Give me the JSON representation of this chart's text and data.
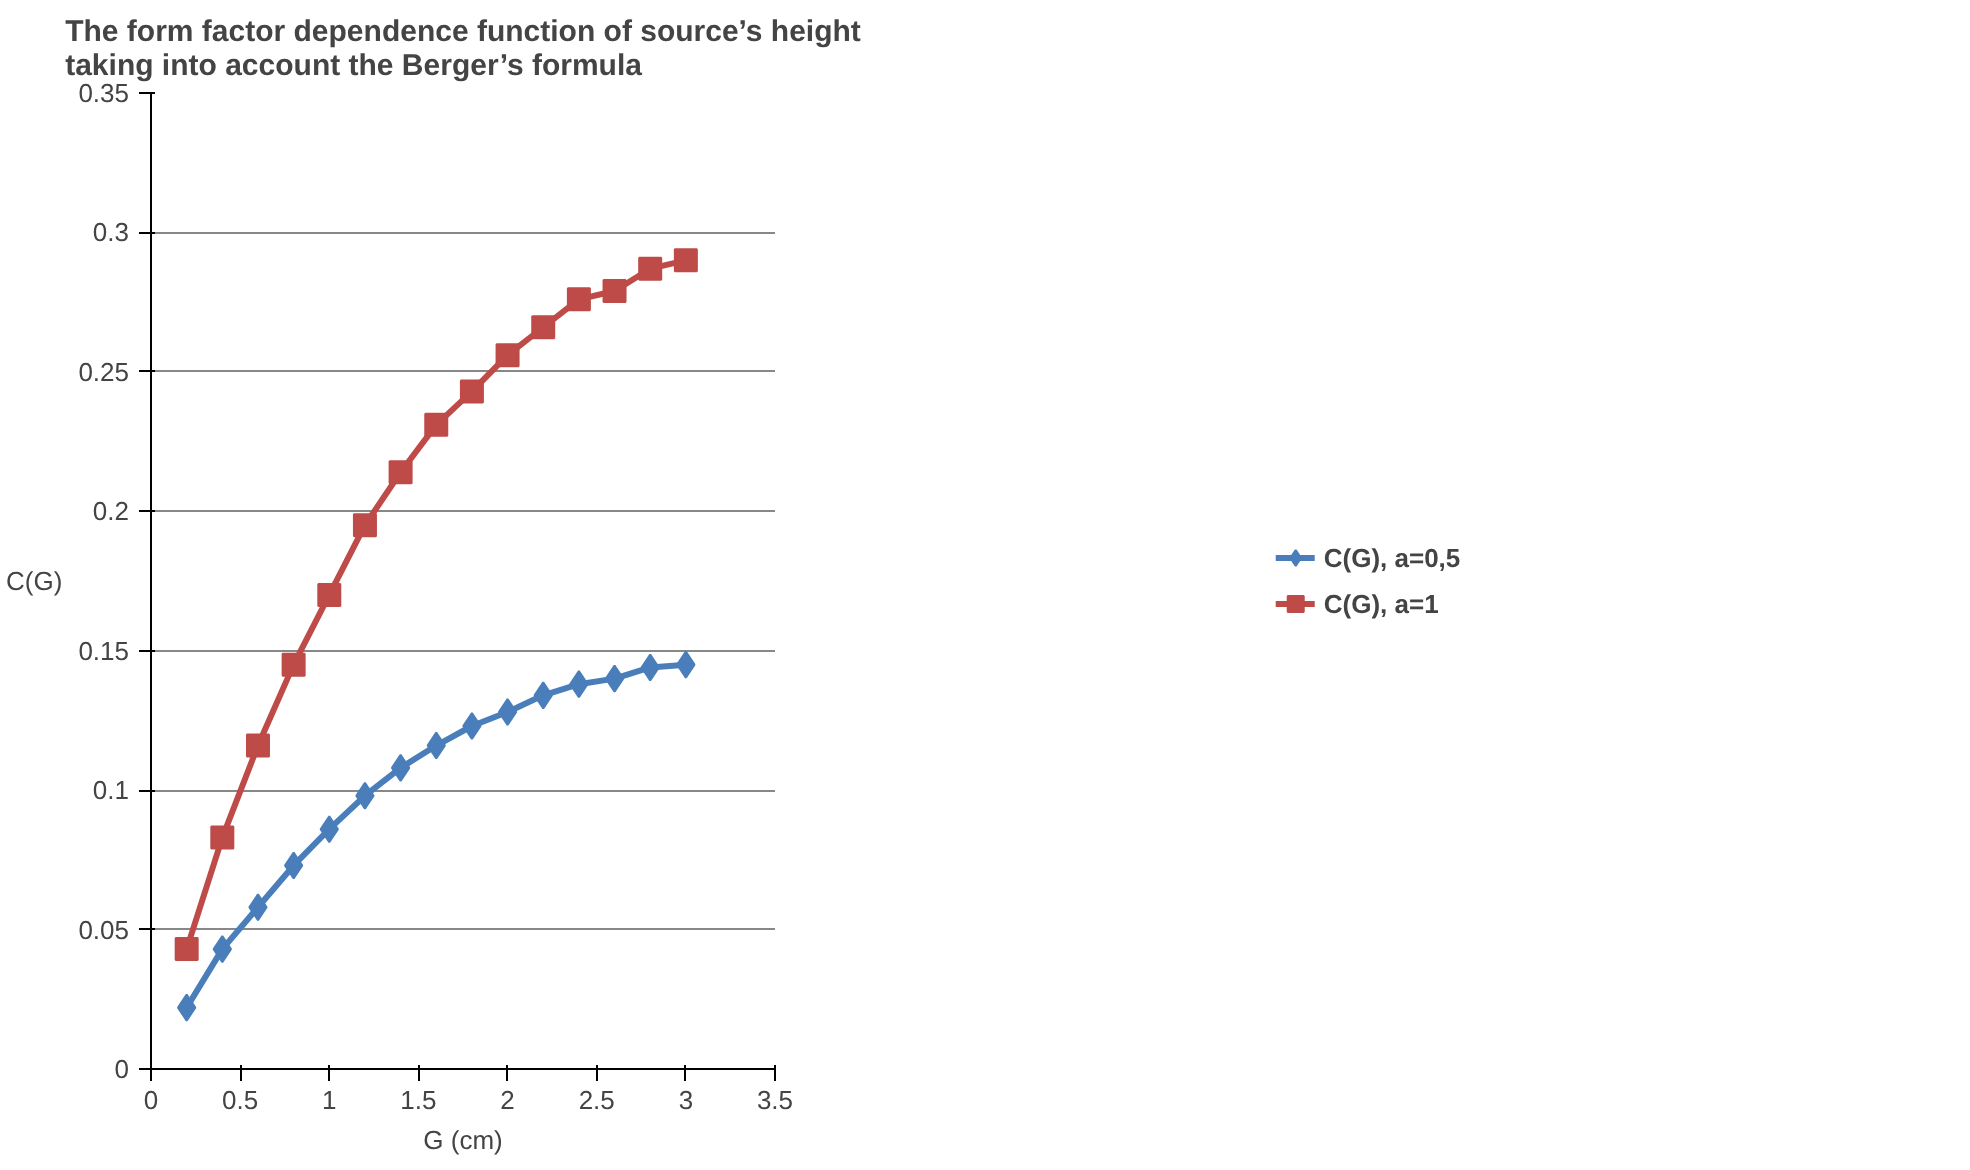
{
  "chart_data": {
    "type": "line",
    "title": "The form factor dependence function of source’s height\ntaking into account the Berger’s formula",
    "xlabel": "G (cm)",
    "ylabel": "C(G)",
    "x": [
      0.2,
      0.4,
      0.6,
      0.8,
      1.0,
      1.2,
      1.4,
      1.6,
      1.8,
      2.0,
      2.2,
      2.4,
      2.6,
      2.8,
      3.0
    ],
    "series": [
      {
        "name": "C(G), a=0,5",
        "color": "#4a7ebb",
        "marker": "diamond",
        "values": [
          0.022,
          0.043,
          0.058,
          0.073,
          0.086,
          0.098,
          0.108,
          0.116,
          0.123,
          0.128,
          0.134,
          0.138,
          0.14,
          0.144,
          0.145
        ]
      },
      {
        "name": "C(G), a=1",
        "color": "#be4b48",
        "marker": "square",
        "values": [
          0.043,
          0.083,
          0.116,
          0.145,
          0.17,
          0.195,
          0.214,
          0.231,
          0.243,
          0.256,
          0.266,
          0.276,
          0.279,
          0.287,
          0.29
        ]
      }
    ],
    "xlim": [
      0,
      3.5
    ],
    "xticks": [
      0,
      0.5,
      1,
      1.5,
      2,
      2.5,
      3,
      3.5
    ],
    "ylim": [
      0,
      0.35
    ],
    "yticks": [
      0,
      0.05,
      0.1,
      0.15,
      0.2,
      0.25,
      0.3,
      0.35
    ],
    "grid": "y",
    "legend": "right",
    "line_style": "solid"
  }
}
